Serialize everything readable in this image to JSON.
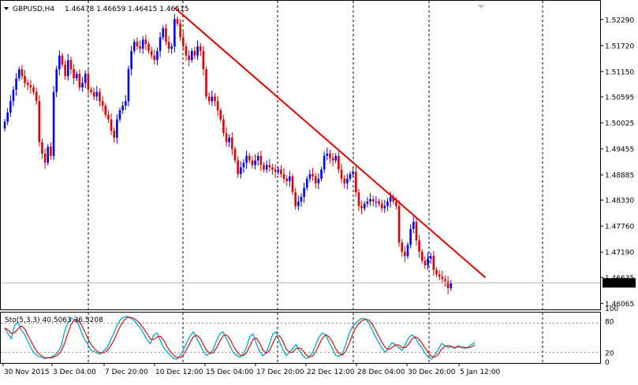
{
  "header": {
    "symbol": "GBPUSD,H4",
    "ohlc": "1.46478 1.46659 1.46415 1.46515"
  },
  "indicator": {
    "label": "Sto(5,3,3) 40.5063 36.5208",
    "levels": [
      "100",
      "80",
      "20",
      "0"
    ]
  },
  "colors": {
    "up": "#0000ff",
    "down": "#dd0000",
    "trendline": "#e00000",
    "k_line": "#00aacc",
    "d_line": "#dd0000",
    "price_tag_bg": "#000000",
    "price_tag_text": "#ffffff"
  },
  "chart_data": [
    {
      "type": "candlestick",
      "title": "GBPUSD,H4",
      "x_tick_labels": [
        "30 Nov 2015",
        "3 Dec 04:00",
        "7 Dec 20:00",
        "10 Dec 12:00",
        "15 Dec 04:00",
        "17 Dec 20:00",
        "22 Dec 12:00",
        "28 Dec 04:00",
        "30 Dec 20:00",
        "5 Jan 12:00"
      ],
      "y_tick_labels": [
        "1.52290",
        "1.51720",
        "1.51150",
        "1.50595",
        "1.50025",
        "1.49455",
        "1.48885",
        "1.48330",
        "1.47760",
        "1.47190",
        "1.46635",
        "1.46065"
      ],
      "ylim": [
        1.4595,
        1.5258
      ],
      "current_price": "1.46515",
      "grid": "vertical dashed lines at day separators",
      "candles_close": [
        1.5005,
        1.5025,
        1.505,
        1.5075,
        1.51,
        1.512,
        1.5105,
        1.509,
        1.5085,
        1.508,
        1.507,
        1.505,
        1.496,
        1.4935,
        1.4915,
        1.495,
        1.493,
        1.507,
        1.512,
        1.515,
        1.513,
        1.5105,
        1.514,
        1.512,
        1.51,
        1.511,
        1.508,
        1.509,
        1.511,
        1.5075,
        1.507,
        1.506,
        1.507,
        1.505,
        1.504,
        1.502,
        1.501,
        1.4985,
        1.497,
        1.501,
        1.503,
        1.504,
        1.505,
        1.512,
        1.516,
        1.518,
        1.517,
        1.5165,
        1.5185,
        1.5175,
        1.516,
        1.515,
        1.514,
        1.516,
        1.519,
        1.521,
        1.518,
        1.5165,
        1.517,
        1.523,
        1.522,
        1.519,
        1.517,
        1.515,
        1.514,
        1.516,
        1.515,
        1.517,
        1.516,
        1.512,
        1.506,
        1.505,
        1.506,
        1.505,
        1.503,
        1.501,
        1.498,
        1.496,
        1.497,
        1.4945,
        1.492,
        1.489,
        1.4905,
        1.4915,
        1.493,
        1.492,
        1.491,
        1.492,
        1.493,
        1.491,
        1.49,
        1.491,
        1.4905,
        1.49,
        1.4895,
        1.49,
        1.489,
        1.488,
        1.4875,
        1.4885,
        1.485,
        1.482,
        1.483,
        1.484,
        1.486,
        1.488,
        1.489,
        1.4885,
        1.487,
        1.488,
        1.49,
        1.493,
        1.4935,
        1.4925,
        1.492,
        1.493,
        1.49,
        1.488,
        1.487,
        1.488,
        1.489,
        1.4895,
        1.485,
        1.482,
        1.4815,
        1.4825,
        1.483,
        1.4835,
        1.483,
        1.483,
        1.4825,
        1.4815,
        1.482,
        1.483,
        1.484,
        1.483,
        1.482,
        1.474,
        1.472,
        1.471,
        1.4735,
        1.477,
        1.4785,
        1.4745,
        1.472,
        1.47,
        1.469,
        1.4705,
        1.471,
        1.468,
        1.467,
        1.4665,
        1.466,
        1.4655,
        1.464,
        1.4652
      ],
      "trendline": {
        "from": [
          59,
          1.5255
        ],
        "to": [
          167,
          1.4663
        ]
      }
    },
    {
      "type": "line",
      "title": "Sto(5,3,3) 40.5063 36.5208",
      "ylim": [
        0,
        100
      ],
      "levels": [
        20,
        80
      ],
      "series": [
        {
          "values": [
            70,
            58,
            48,
            75,
            82,
            66,
            57,
            42,
            28,
            18,
            12,
            10,
            7,
            9,
            10,
            14,
            20,
            32,
            60,
            80,
            90,
            88,
            82,
            65,
            48,
            38,
            25,
            22,
            18,
            17,
            24,
            30,
            46,
            60,
            76,
            88,
            92,
            94,
            90,
            86,
            78,
            70,
            58,
            46,
            38,
            56,
            60,
            44,
            30,
            22,
            14,
            8,
            6,
            14,
            26,
            40,
            54,
            62,
            50,
            36,
            22,
            14,
            18,
            26,
            44,
            58,
            62,
            48,
            34,
            20,
            14,
            10,
            16,
            30,
            52,
            58,
            38,
            22,
            13,
            20,
            38,
            58,
            62,
            42,
            26,
            14,
            20,
            28,
            36,
            24,
            14,
            8,
            10,
            20,
            36,
            52,
            60,
            56,
            40,
            28,
            14,
            12,
            18,
            36,
            58,
            72,
            80,
            86,
            90,
            88,
            80,
            66,
            52,
            40,
            28,
            20,
            30,
            40,
            36,
            30,
            24,
            36,
            50,
            56,
            50,
            38,
            30,
            18,
            10,
            6,
            16,
            26,
            38,
            34,
            30,
            32,
            28,
            34,
            30,
            28,
            30,
            36,
            40
          ]
        }
      ]
    }
  ]
}
